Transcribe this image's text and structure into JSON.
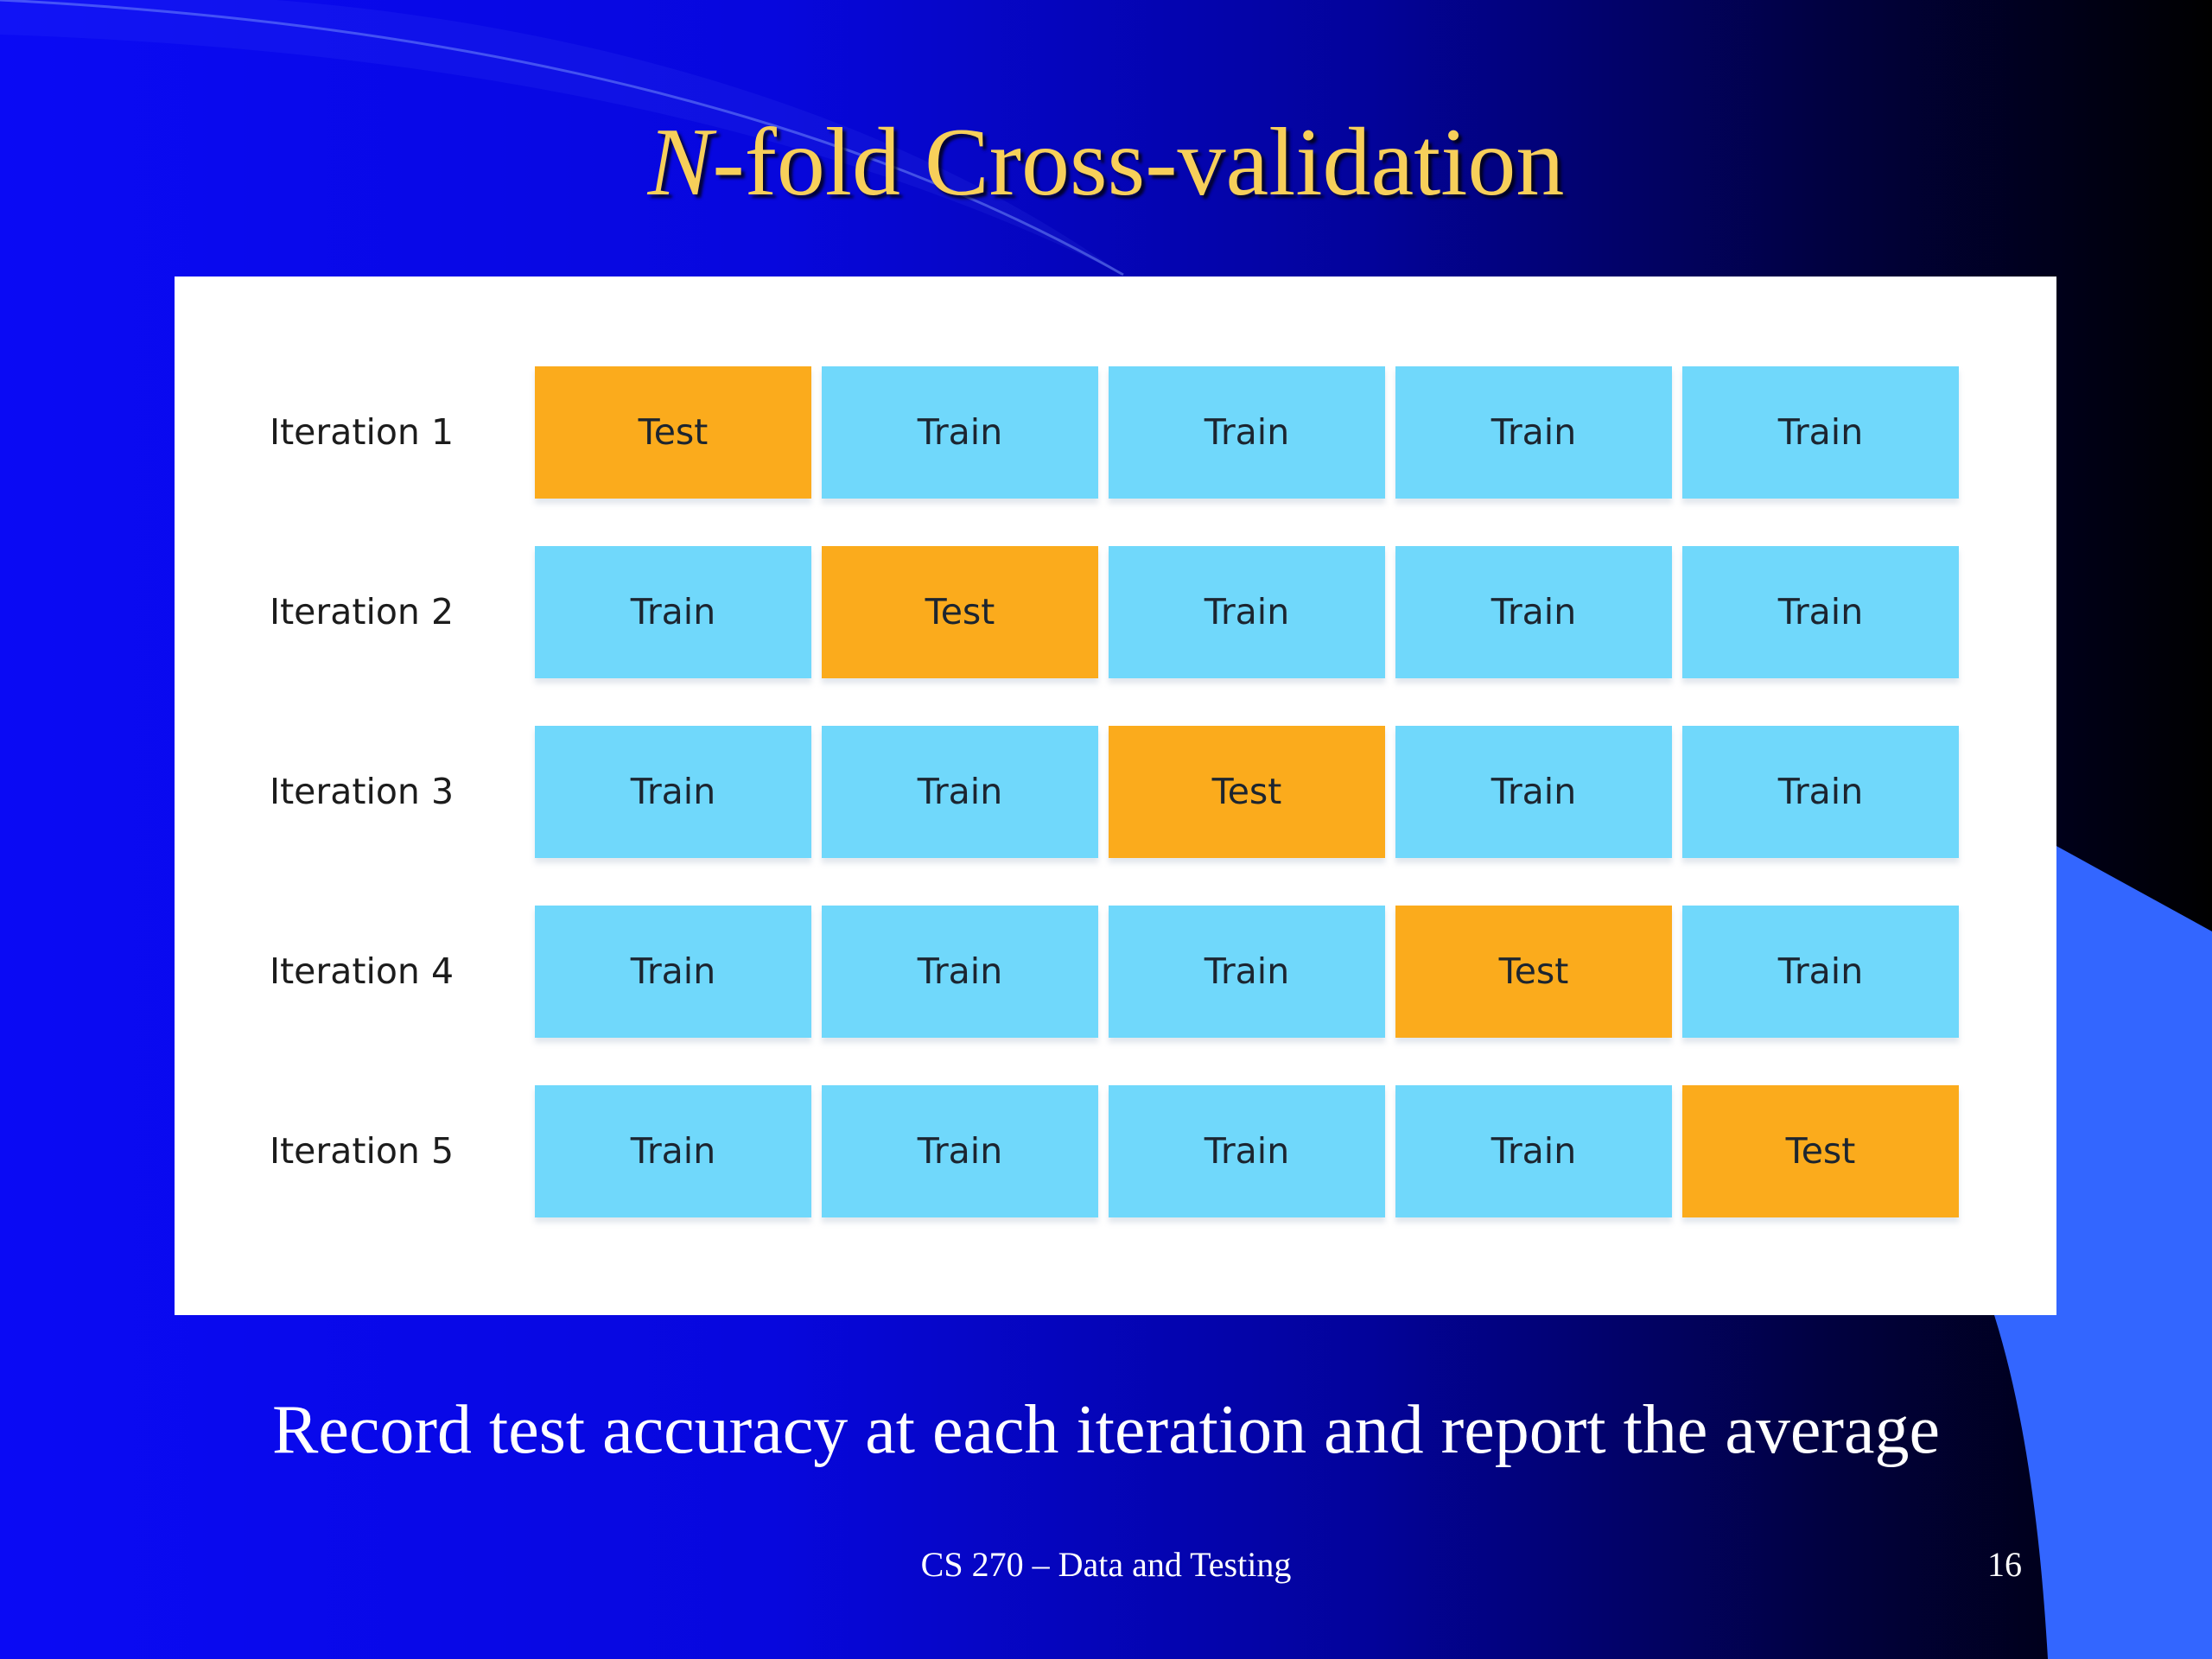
{
  "slide": {
    "title_italic": "N",
    "title_rest": "-fold Cross-validation",
    "caption": "Record test accuracy at each iteration and report the average",
    "footer": "CS 270 – Data and Testing",
    "page_number": "16"
  },
  "colors": {
    "title": "#f7cf5a",
    "train": "#70d8fb",
    "test": "#fbab1c",
    "accent_shape": "#3366ff"
  },
  "diagram": {
    "iterations": [
      {
        "label": "Iteration 1",
        "cells": [
          "Test",
          "Train",
          "Train",
          "Train",
          "Train"
        ]
      },
      {
        "label": "Iteration 2",
        "cells": [
          "Train",
          "Test",
          "Train",
          "Train",
          "Train"
        ]
      },
      {
        "label": "Iteration 3",
        "cells": [
          "Train",
          "Train",
          "Test",
          "Train",
          "Train"
        ]
      },
      {
        "label": "Iteration 4",
        "cells": [
          "Train",
          "Train",
          "Train",
          "Test",
          "Train"
        ]
      },
      {
        "label": "Iteration 5",
        "cells": [
          "Train",
          "Train",
          "Train",
          "Train",
          "Test"
        ]
      }
    ]
  }
}
